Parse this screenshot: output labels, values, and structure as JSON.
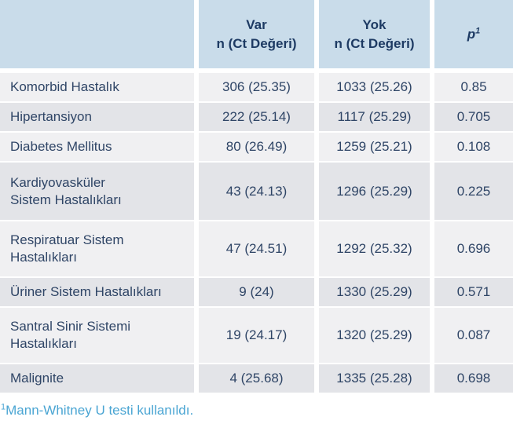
{
  "colors": {
    "header_bg": "#c9dcea",
    "row_light": "#f0f0f2",
    "row_dark": "#e3e4e8",
    "header_text": "#1d3a63",
    "body_text": "#2f4566",
    "footnote_text": "#4aa5d3",
    "gutter": "#ffffff"
  },
  "table": {
    "header": {
      "empty": "",
      "var_line1": "Var",
      "var_line2": "n (Ct Değeri)",
      "yok_line1": "Yok",
      "yok_line2": "n (Ct Değeri)",
      "p_label": "p",
      "p_sup": "1"
    },
    "rows": [
      {
        "label": "Komorbid Hastalık",
        "var": "306 (25.35)",
        "yok": "1033 (25.26)",
        "p": "0.85"
      },
      {
        "label": "Hipertansiyon",
        "var": "222 (25.14)",
        "yok": "1117 (25.29)",
        "p": "0.705"
      },
      {
        "label": "Diabetes Mellitus",
        "var": "80 (26.49)",
        "yok": "1259 (25.21)",
        "p": "0.108"
      },
      {
        "label": "Kardiyovasküler\nSistem Hastalıkları",
        "var": "43 (24.13)",
        "yok": "1296 (25.29)",
        "p": "0.225"
      },
      {
        "label": "Respiratuar Sistem\nHastalıkları",
        "var": "47 (24.51)",
        "yok": "1292 (25.32)",
        "p": "0.696"
      },
      {
        "label": "Üriner Sistem Hastalıkları",
        "var": "9 (24)",
        "yok": "1330 (25.29)",
        "p": "0.571"
      },
      {
        "label": "Santral Sinir Sistemi\nHastalıkları",
        "var": "19 (24.17)",
        "yok": "1320 (25.29)",
        "p": "0.087"
      },
      {
        "label": "Malignite",
        "var": "4 (25.68)",
        "yok": "1335 (25.28)",
        "p": "0.698"
      }
    ]
  },
  "footnote": {
    "sup": "1",
    "text": "Mann-Whitney U testi kullanıldı."
  }
}
